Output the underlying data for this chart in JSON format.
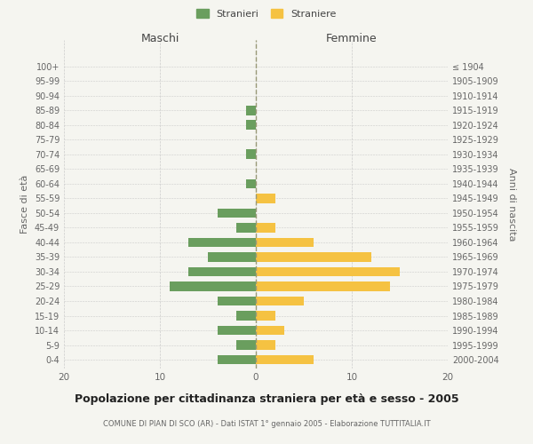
{
  "age_groups": [
    "0-4",
    "5-9",
    "10-14",
    "15-19",
    "20-24",
    "25-29",
    "30-34",
    "35-39",
    "40-44",
    "45-49",
    "50-54",
    "55-59",
    "60-64",
    "65-69",
    "70-74",
    "75-79",
    "80-84",
    "85-89",
    "90-94",
    "95-99",
    "100+"
  ],
  "birth_years": [
    "2000-2004",
    "1995-1999",
    "1990-1994",
    "1985-1989",
    "1980-1984",
    "1975-1979",
    "1970-1974",
    "1965-1969",
    "1960-1964",
    "1955-1959",
    "1950-1954",
    "1945-1949",
    "1940-1944",
    "1935-1939",
    "1930-1934",
    "1925-1929",
    "1920-1924",
    "1915-1919",
    "1910-1914",
    "1905-1909",
    "≤ 1904"
  ],
  "maschi": [
    4,
    2,
    4,
    2,
    4,
    9,
    7,
    5,
    7,
    2,
    4,
    0,
    1,
    0,
    1,
    0,
    1,
    1,
    0,
    0,
    0
  ],
  "femmine": [
    6,
    2,
    3,
    2,
    5,
    14,
    15,
    12,
    6,
    2,
    0,
    2,
    0,
    0,
    0,
    0,
    0,
    0,
    0,
    0,
    0
  ],
  "maschi_color": "#6a9e5e",
  "femmine_color": "#f5c242",
  "title": "Popolazione per cittadinanza straniera per età e sesso - 2005",
  "subtitle": "COMUNE DI PIAN DI SCO (AR) - Dati ISTAT 1° gennaio 2005 - Elaborazione TUTTITALIA.IT",
  "ylabel_left": "Fasce di età",
  "ylabel_right": "Anni di nascita",
  "xlabel_maschi": "Maschi",
  "xlabel_femmine": "Femmine",
  "legend_maschi": "Stranieri",
  "legend_femmine": "Straniere",
  "xlim": 20,
  "background_color": "#f5f5f0",
  "grid_color": "#cccccc",
  "text_color": "#666666"
}
